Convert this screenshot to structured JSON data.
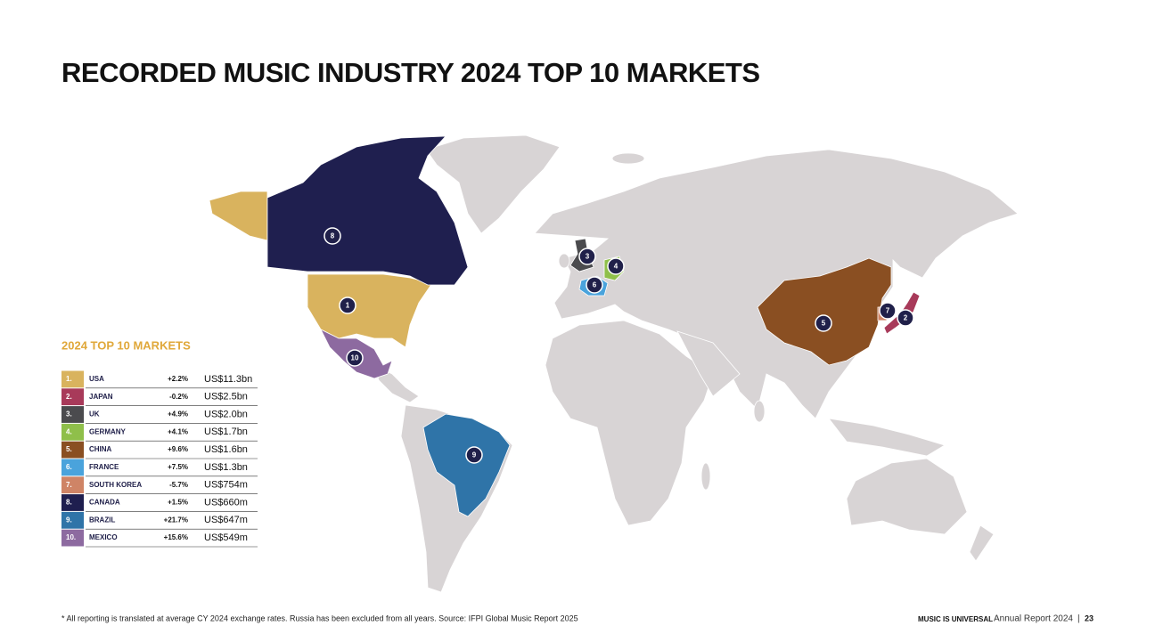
{
  "title": "RECORDED MUSIC INDUSTRY 2024 TOP 10 MARKETS",
  "legend": {
    "title": "2024 TOP 10 MARKETS",
    "rows": [
      {
        "rank": "1.",
        "country": "USA",
        "growth": "+2.2%",
        "revenue": "US$11.3bn",
        "color": "#d9b35e"
      },
      {
        "rank": "2.",
        "country": "JAPAN",
        "growth": "-0.2%",
        "revenue": "US$2.5bn",
        "color": "#a83a5a"
      },
      {
        "rank": "3.",
        "country": "UK",
        "growth": "+4.9%",
        "revenue": "US$2.0bn",
        "color": "#4b4b4e"
      },
      {
        "rank": "4.",
        "country": "GERMANY",
        "growth": "+4.1%",
        "revenue": "US$1.7bn",
        "color": "#8fbf4a"
      },
      {
        "rank": "5.",
        "country": "CHINA",
        "growth": "+9.6%",
        "revenue": "US$1.6bn",
        "color": "#8a4f22"
      },
      {
        "rank": "6.",
        "country": "FRANCE",
        "growth": "+7.5%",
        "revenue": "US$1.3bn",
        "color": "#4aa3dc"
      },
      {
        "rank": "7.",
        "country": "SOUTH KOREA",
        "growth": "-5.7%",
        "revenue": "US$754m",
        "color": "#cf8466"
      },
      {
        "rank": "8.",
        "country": "CANADA",
        "growth": "+1.5%",
        "revenue": "US$660m",
        "color": "#1f1f4f"
      },
      {
        "rank": "9.",
        "country": "BRAZIL",
        "growth": "+21.7%",
        "revenue": "US$647m",
        "color": "#2f74a8"
      },
      {
        "rank": "10.",
        "country": "MEXICO",
        "growth": "+15.6%",
        "revenue": "US$549m",
        "color": "#8d6aa0"
      }
    ]
  },
  "markers": [
    "1",
    "2",
    "3",
    "4",
    "5",
    "6",
    "7",
    "8",
    "9",
    "10"
  ],
  "footer": {
    "note": "* All reporting is translated at average CY 2024 exchange rates. Russia has been excluded from all years. Source: IFPI Global Music Report 2025",
    "brand": "MUSIC IS UNIVERSAL",
    "report": "Annual Report 2024",
    "separator": "|",
    "page": "23"
  }
}
